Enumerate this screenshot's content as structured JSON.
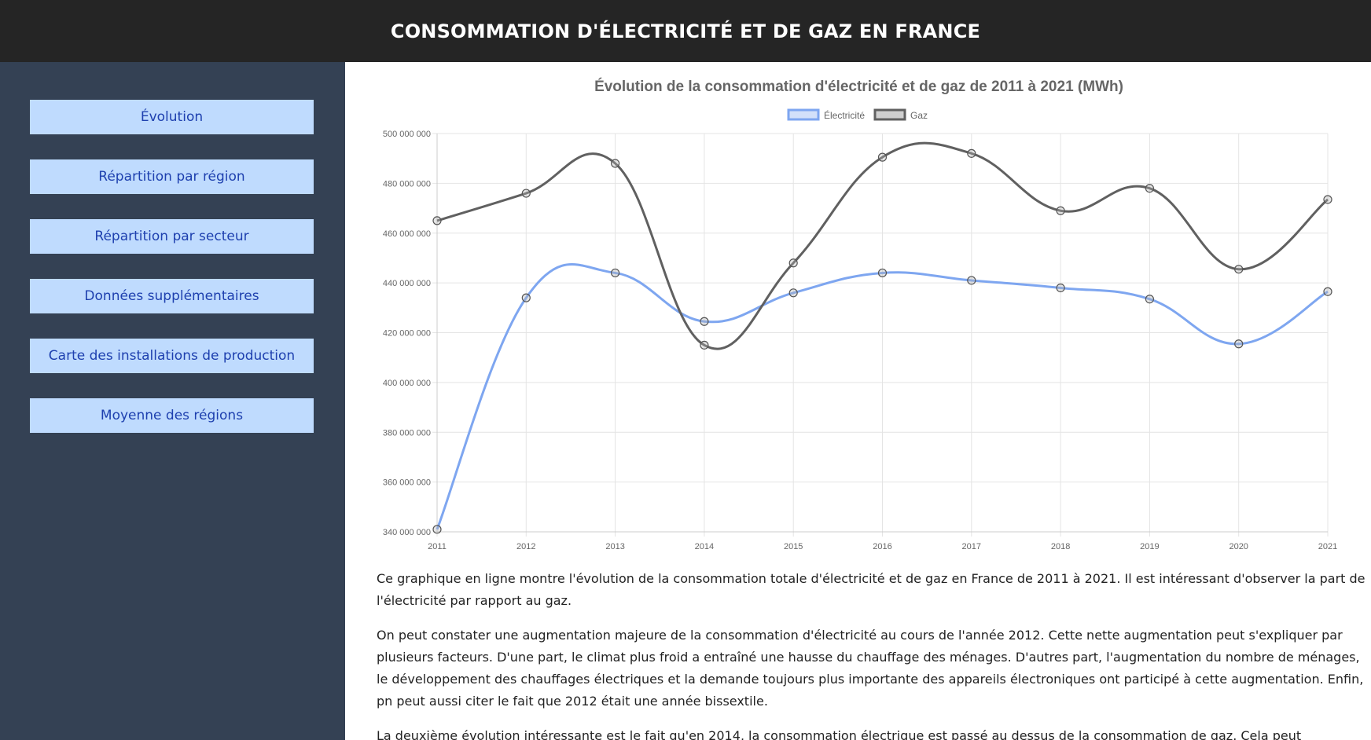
{
  "header": {
    "title": "CONSOMMATION D'ÉLECTRICITÉ ET DE GAZ EN FRANCE"
  },
  "sidebar": {
    "items": [
      {
        "label": "Évolution"
      },
      {
        "label": "Répartition par région"
      },
      {
        "label": "Répartition par secteur"
      },
      {
        "label": "Données supplémentaires"
      },
      {
        "label": "Carte des installations de production"
      },
      {
        "label": "Moyenne des régions"
      }
    ]
  },
  "chart_data": {
    "type": "line",
    "title": "Évolution de la consommation d'électricité et de gaz de 2011 à 2021 (MWh)",
    "categories": [
      "2011",
      "2012",
      "2013",
      "2014",
      "2015",
      "2016",
      "2017",
      "2018",
      "2019",
      "2020",
      "2021"
    ],
    "series": [
      {
        "name": "Électricité",
        "color": "#7ea6f0",
        "values": [
          341000000,
          434000000,
          444000000,
          424500000,
          436000000,
          444000000,
          441000000,
          438000000,
          433500000,
          415500000,
          436500000
        ]
      },
      {
        "name": "Gaz",
        "color": "#606060",
        "values": [
          465000000,
          476000000,
          488000000,
          415000000,
          448000000,
          490500000,
          492000000,
          469000000,
          478000000,
          445500000,
          473500000
        ]
      }
    ],
    "ylim": [
      340000000,
      500000000
    ],
    "yticks": [
      "500 000 000",
      "480 000 000",
      "460 000 000",
      "440 000 000",
      "420 000 000",
      "400 000 000",
      "380 000 000",
      "360 000 000",
      "340 000 000"
    ],
    "ytick_values": [
      500000000,
      480000000,
      460000000,
      440000000,
      420000000,
      400000000,
      380000000,
      360000000,
      340000000
    ],
    "grid": true,
    "legend": "top"
  },
  "content": {
    "paragraphs": [
      "Ce graphique en ligne montre l'évolution de la consommation totale d'électricité et de gaz en France de 2011 à 2021. Il est intéressant d'observer la part de l'électricité par rapport au gaz.",
      "On peut constater une augmentation majeure de la consommation d'électricité au cours de l'année 2012. Cette nette augmentation peut s'expliquer par plusieurs facteurs. D'une part, le climat plus froid a entraîné une hausse du chauffage des ménages. D'autres part, l'augmentation du nombre de ménages, le développement des chauffages électriques et la demande toujours plus importante des appareils électroniques ont participé à cette augmentation. Enfin, pn peut aussi citer le fait que 2012 était une année bissextile.",
      "La deuxième évolution intéressante est le fait qu'en 2014, la consommation électrique est passé au dessus de la consommation de gaz. Cela peut"
    ]
  }
}
